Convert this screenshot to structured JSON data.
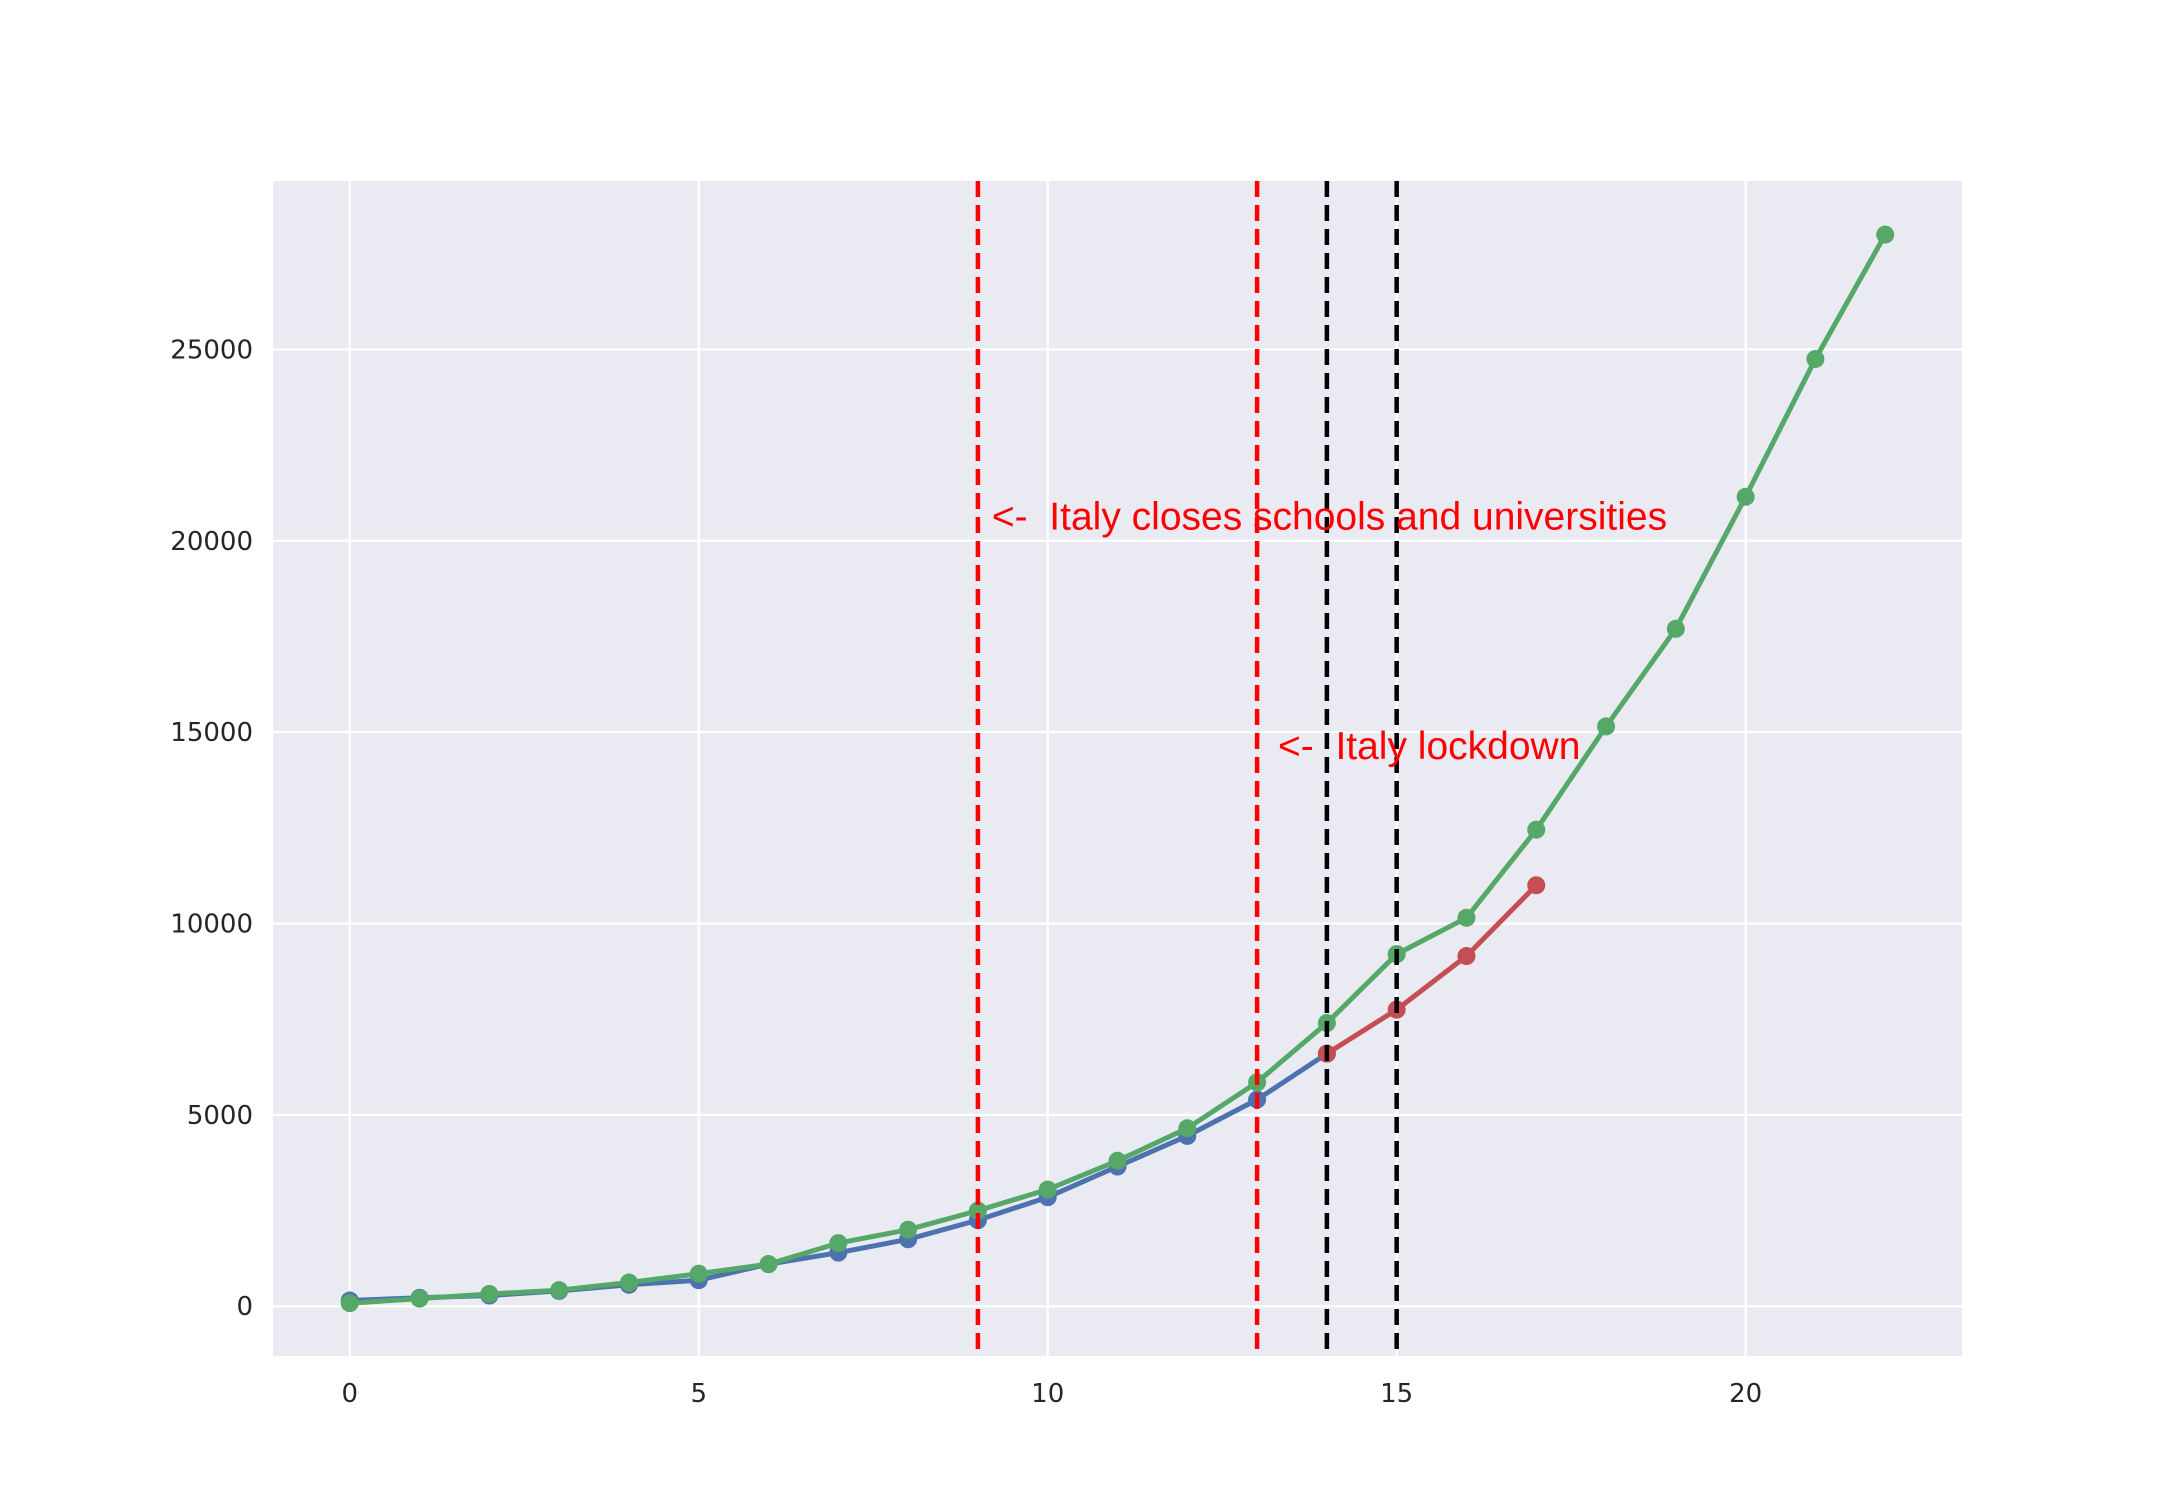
{
  "chart_data": {
    "type": "line",
    "title": "",
    "xlabel": "",
    "ylabel": "",
    "xlim": [
      -1.1,
      23.1
    ],
    "ylim": [
      -1300,
      29400
    ],
    "xticks": [
      0,
      5,
      10,
      15,
      20
    ],
    "yticks": [
      0,
      5000,
      10000,
      15000,
      20000,
      25000
    ],
    "grid": true,
    "colors": {
      "background": "#eaeaf2",
      "grid": "#ffffff"
    },
    "series": [
      {
        "color": "#4c72b0",
        "x": [
          0,
          1,
          2,
          3,
          4,
          5,
          6,
          7,
          8,
          9,
          10,
          11,
          12,
          13,
          14
        ],
        "values": [
          150,
          220,
          280,
          400,
          560,
          680,
          1100,
          1400,
          1750,
          2250,
          2850,
          3650,
          4450,
          5400,
          6600
        ]
      },
      {
        "color": "#c44e52",
        "x": [
          14,
          15,
          16,
          17
        ],
        "values": [
          6600,
          7750,
          9150,
          11000
        ]
      },
      {
        "color": "#55a868",
        "x": [
          0,
          1,
          2,
          3,
          4,
          5,
          6,
          7,
          8,
          9,
          10,
          11,
          12,
          13,
          14,
          15,
          16,
          17,
          18,
          19,
          20,
          21,
          22
        ],
        "values": [
          80,
          200,
          320,
          420,
          620,
          850,
          1100,
          1650,
          2000,
          2500,
          3050,
          3800,
          4650,
          5850,
          7400,
          9200,
          10150,
          12450,
          15150,
          17700,
          21150,
          24750,
          28000
        ]
      }
    ],
    "vlines": [
      {
        "x": 9,
        "color": "#ff0000"
      },
      {
        "x": 13,
        "color": "#ff0000"
      },
      {
        "x": 14,
        "color": "#000000"
      },
      {
        "x": 15,
        "color": "#000000"
      }
    ],
    "annotations": [
      {
        "text": "<-  Italy closes schools and universities",
        "x": 9.2,
        "y": 20300,
        "color": "#ff0000"
      },
      {
        "text": "<-  Italy lockdown",
        "x": 13.3,
        "y": 14300,
        "color": "#ff0000"
      }
    ]
  }
}
